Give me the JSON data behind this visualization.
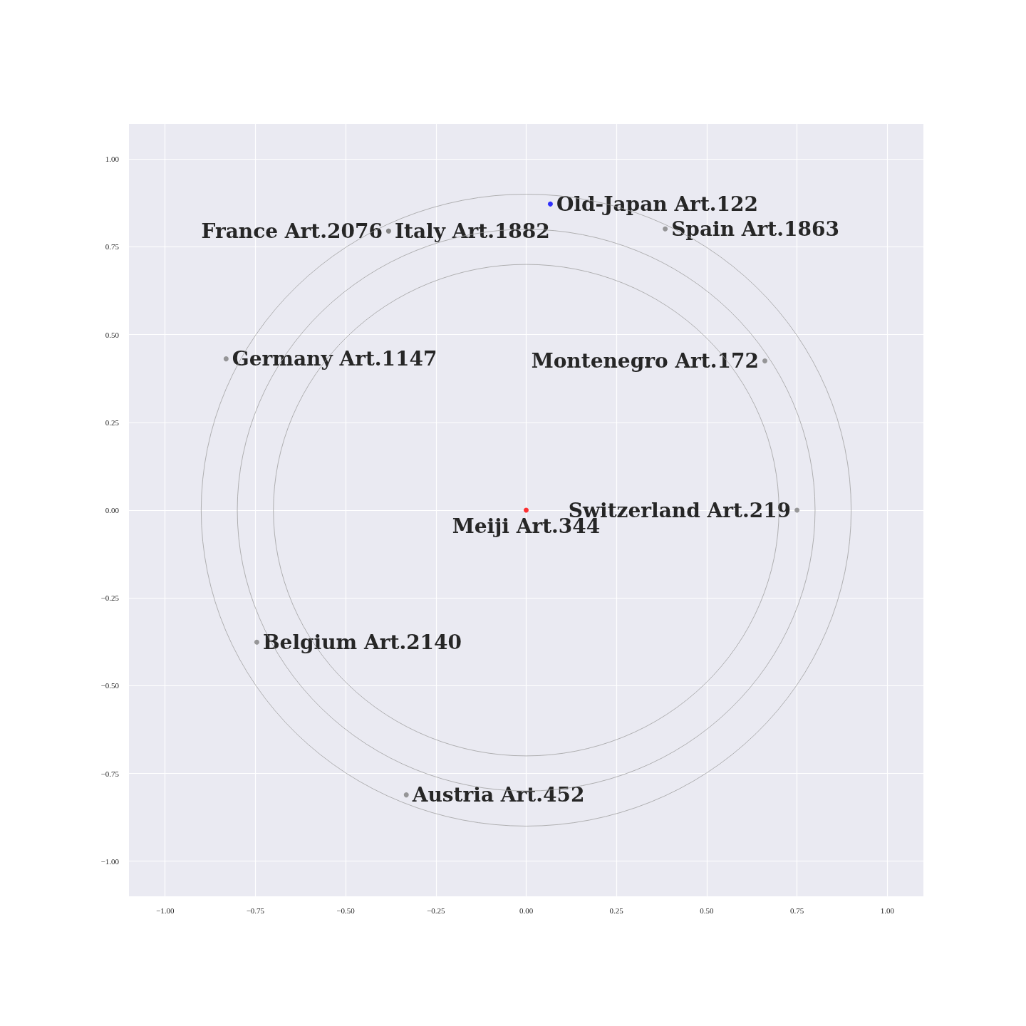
{
  "chart_data": {
    "type": "scatter",
    "xlim": [
      -1.1,
      1.1
    ],
    "ylim": [
      -1.1,
      1.1
    ],
    "xticks": [
      {
        "value": -1,
        "label": "−1.00"
      },
      {
        "value": -0.75,
        "label": "−0.75"
      },
      {
        "value": -0.5,
        "label": "−0.50"
      },
      {
        "value": -0.25,
        "label": "−0.25"
      },
      {
        "value": 0,
        "label": "0.00"
      },
      {
        "value": 0.25,
        "label": "0.25"
      },
      {
        "value": 0.5,
        "label": "0.50"
      },
      {
        "value": 0.75,
        "label": "0.75"
      },
      {
        "value": 1,
        "label": "1.00"
      }
    ],
    "yticks": [
      {
        "value": -1,
        "label": "−1.00"
      },
      {
        "value": -0.75,
        "label": "−0.75"
      },
      {
        "value": -0.5,
        "label": "−0.50"
      },
      {
        "value": -0.25,
        "label": "−0.25"
      },
      {
        "value": 0,
        "label": "0.00"
      },
      {
        "value": 0.25,
        "label": "0.25"
      },
      {
        "value": 0.5,
        "label": "0.50"
      },
      {
        "value": 0.75,
        "label": "0.75"
      },
      {
        "value": 1,
        "label": "1.00"
      }
    ],
    "grid": true,
    "series": [
      {
        "marker": "circle",
        "x": [
          0,
          0.067,
          -0.381,
          -0.381,
          0.385,
          -0.831,
          0.661,
          0.75,
          -0.746,
          -0.332
        ],
        "values": [
          0,
          0.872,
          0.795,
          0.795,
          0.801,
          0.431,
          0.425,
          0,
          -0.376,
          -0.811
        ],
        "colors": [
          "#ff0000",
          "#0000ff",
          "#808080",
          "#808080",
          "#808080",
          "#808080",
          "#808080",
          "#808080",
          "#808080",
          "#808080"
        ],
        "value_labels": [
          "Meiji Art.344",
          "Old-Japan Art.122",
          "Italy Art.1882",
          "France Art.2076",
          "Spain Art.1863",
          "Germany Art.1147",
          "Montenegro Art.172",
          "Switzerland Art.219",
          "Belgium Art.2140",
          "Austria Art.452"
        ]
      }
    ]
  }
}
